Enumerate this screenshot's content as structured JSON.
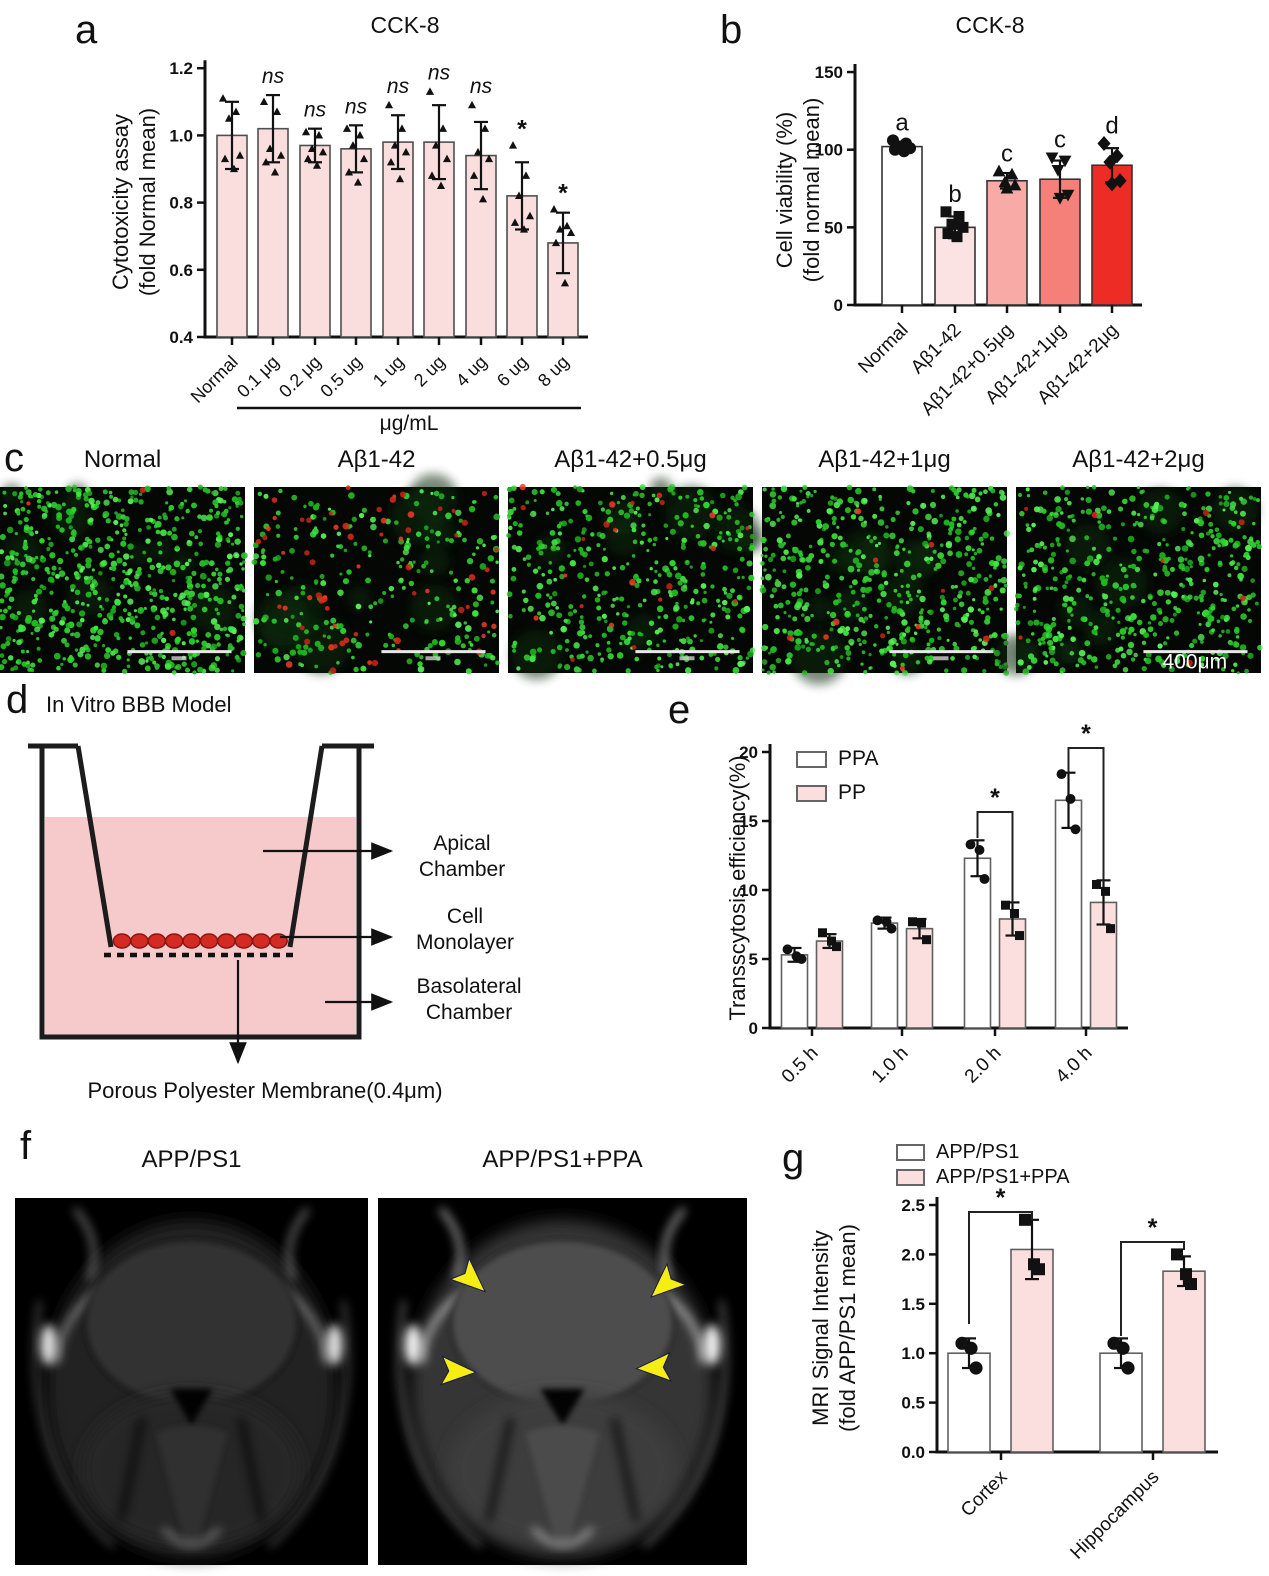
{
  "letters": {
    "a": "a",
    "b": "b",
    "c": "c",
    "d": "d",
    "e": "e",
    "f": "f",
    "g": "g"
  },
  "chart_data": [
    {
      "id": "a",
      "type": "bar",
      "title": "CCK-8",
      "ylabel_lines": [
        "Cytotoxicity assay",
        "(fold Normal mean)"
      ],
      "ylim": [
        0.4,
        1.2
      ],
      "yticks": [
        "0.4",
        "0.6",
        "0.8",
        "1.0",
        "1.2"
      ],
      "xlabel": "μg/mL",
      "categories": [
        "Normal",
        "0.1 μg",
        "0.2 μg",
        "0.5 ug",
        "1 ug",
        "2 ug",
        "4 ug",
        "6 ug",
        "8 ug"
      ],
      "values": [
        1.0,
        1.02,
        0.97,
        0.96,
        0.98,
        0.98,
        0.94,
        0.82,
        0.68
      ],
      "errors": [
        0.1,
        0.1,
        0.05,
        0.07,
        0.08,
        0.11,
        0.1,
        0.1,
        0.09
      ],
      "points": [
        [
          1.11,
          1.07,
          1.05,
          0.94,
          0.93,
          0.9
        ],
        [
          1.1,
          1.07,
          0.96,
          0.94,
          0.92,
          0.89
        ],
        [
          1.01,
          1.0,
          0.96,
          0.95,
          0.93,
          0.91
        ],
        [
          1.02,
          1.0,
          0.97,
          0.93,
          0.89,
          0.86
        ],
        [
          1.09,
          1.02,
          0.97,
          0.95,
          0.92,
          0.87
        ],
        [
          1.13,
          1.02,
          0.97,
          0.93,
          0.88,
          0.85
        ],
        [
          1.09,
          1.02,
          0.95,
          0.93,
          0.88,
          0.81
        ],
        [
          0.97,
          0.88,
          0.82,
          0.76,
          0.74,
          0.72
        ],
        [
          0.78,
          0.73,
          0.72,
          0.71,
          0.68,
          0.56
        ]
      ],
      "annotations": [
        "",
        "ns",
        "ns",
        "ns",
        "ns",
        "ns",
        "ns",
        "*",
        "*"
      ],
      "bar_fill": "#fadede",
      "bar_stroke": "#4f4f4f",
      "marker": "triangle-up"
    },
    {
      "id": "b",
      "type": "bar",
      "title": "CCK-8",
      "ylabel_lines": [
        "Cell viability (%)",
        "(fold normal mean)"
      ],
      "ylim": [
        0,
        150
      ],
      "yticks": [
        "0",
        "50",
        "100",
        "150"
      ],
      "categories": [
        "Normal",
        "Aβ1-42",
        "Aβ1-42+0.5μg",
        "Aβ1-42+1μg",
        "Aβ1-42+2μg"
      ],
      "values": [
        102,
        50,
        80,
        81,
        90
      ],
      "errors": [
        3,
        7,
        5,
        12,
        11
      ],
      "points": [
        [
          106,
          104,
          102,
          101,
          100,
          99
        ],
        [
          60,
          57,
          52,
          50,
          46,
          44
        ],
        [
          86,
          84,
          79,
          77,
          75
        ],
        [
          95,
          93,
          87,
          71,
          69
        ],
        [
          104,
          96,
          92,
          80,
          78
        ]
      ],
      "group_letters": [
        "a",
        "b",
        "c",
        "c",
        "d"
      ],
      "bar_fills": [
        "#ffffff",
        "#fce3e3",
        "#f8aaa7",
        "#f5807a",
        "#ee2c26"
      ],
      "bar_stroke": "#333333",
      "markers": [
        "circle",
        "square",
        "triangle-up",
        "triangle-down",
        "diamond"
      ]
    },
    {
      "id": "e",
      "type": "grouped_bar",
      "ylabel_lines": [
        "Transscytosis efficiency(%)"
      ],
      "ylim": [
        0,
        20
      ],
      "yticks": [
        "0",
        "5",
        "10",
        "15",
        "20"
      ],
      "categories": [
        "0.5 h",
        "1.0 h",
        "2.0 h",
        "4.0 h"
      ],
      "legend_position": "top-left",
      "series": [
        {
          "name": "PPA",
          "fill": "#ffffff",
          "marker": "circle",
          "values": [
            5.3,
            7.6,
            12.3,
            16.5
          ],
          "errors": [
            0.5,
            0.4,
            1.3,
            2.0
          ],
          "points": [
            [
              5.7,
              5.2,
              5.0
            ],
            [
              7.8,
              7.7,
              7.2
            ],
            [
              13.3,
              12.9,
              10.8
            ],
            [
              18.4,
              16.6,
              14.4
            ]
          ]
        },
        {
          "name": "PP",
          "fill": "#fbdfdf",
          "marker": "square",
          "values": [
            6.3,
            7.2,
            7.9,
            9.1
          ],
          "errors": [
            0.5,
            0.7,
            1.2,
            1.6
          ],
          "points": [
            [
              6.9,
              6.3,
              5.9
            ],
            [
              7.7,
              7.6,
              6.4
            ],
            [
              8.9,
              8.3,
              6.7
            ],
            [
              10.4,
              9.9,
              7.2
            ]
          ]
        }
      ],
      "sig": [
        {
          "group_index": 2,
          "label": "*"
        },
        {
          "group_index": 3,
          "label": "*"
        }
      ]
    },
    {
      "id": "g",
      "type": "grouped_bar",
      "ylabel_lines": [
        "MRI Signal Intensity",
        "(fold APP/PS1 mean)"
      ],
      "ylim": [
        0,
        2.5
      ],
      "yticks": [
        "0.0",
        "0.5",
        "1.0",
        "1.5",
        "2.0",
        "2.5"
      ],
      "categories": [
        "Cortex",
        "Hippocampus"
      ],
      "legend_position": "top",
      "series": [
        {
          "name": "APP/PS1",
          "fill": "#ffffff",
          "marker": "circle",
          "values": [
            1.0,
            1.0
          ],
          "errors": [
            0.15,
            0.15
          ],
          "points": [
            [
              1.1,
              1.05,
              0.85
            ],
            [
              1.1,
              1.05,
              0.85
            ]
          ]
        },
        {
          "name": "APP/PS1+PPA",
          "fill": "#fbdfdf",
          "marker": "square",
          "values": [
            2.05,
            1.83
          ],
          "errors": [
            0.3,
            0.15
          ],
          "points": [
            [
              2.35,
              1.9,
              1.85
            ],
            [
              2.0,
              1.8,
              1.7
            ]
          ]
        }
      ],
      "sig": [
        {
          "group_index": 0,
          "label": "*"
        },
        {
          "group_index": 1,
          "label": "*"
        }
      ]
    }
  ],
  "microscopy": {
    "labels": [
      "Normal",
      "Aβ1-42",
      "Aβ1-42+0.5μg",
      "Aβ1-42+1μg",
      "Aβ1-42+2μg"
    ],
    "scale_bar_label": "400μm",
    "live_cell_color": "#35e135",
    "dead_cell_color": "#e62e1e",
    "green_counts": [
      660,
      250,
      420,
      520,
      480
    ],
    "red_counts": [
      3,
      65,
      22,
      12,
      8
    ]
  },
  "bbb": {
    "title": "In Vitro BBB Model",
    "apical": "Apical Chamber",
    "cell": "Cell Monolayer",
    "baso": "Basolateral Chamber",
    "membrane": "Porous Polyester Membrane(0.4μm)",
    "liquid_color": "#f6c9cb",
    "cell_color": "#d32b24"
  },
  "mri": {
    "labels": [
      "APP/PS1",
      "APP/PS1+PPA"
    ],
    "arrow_color": "#f6ee13"
  }
}
